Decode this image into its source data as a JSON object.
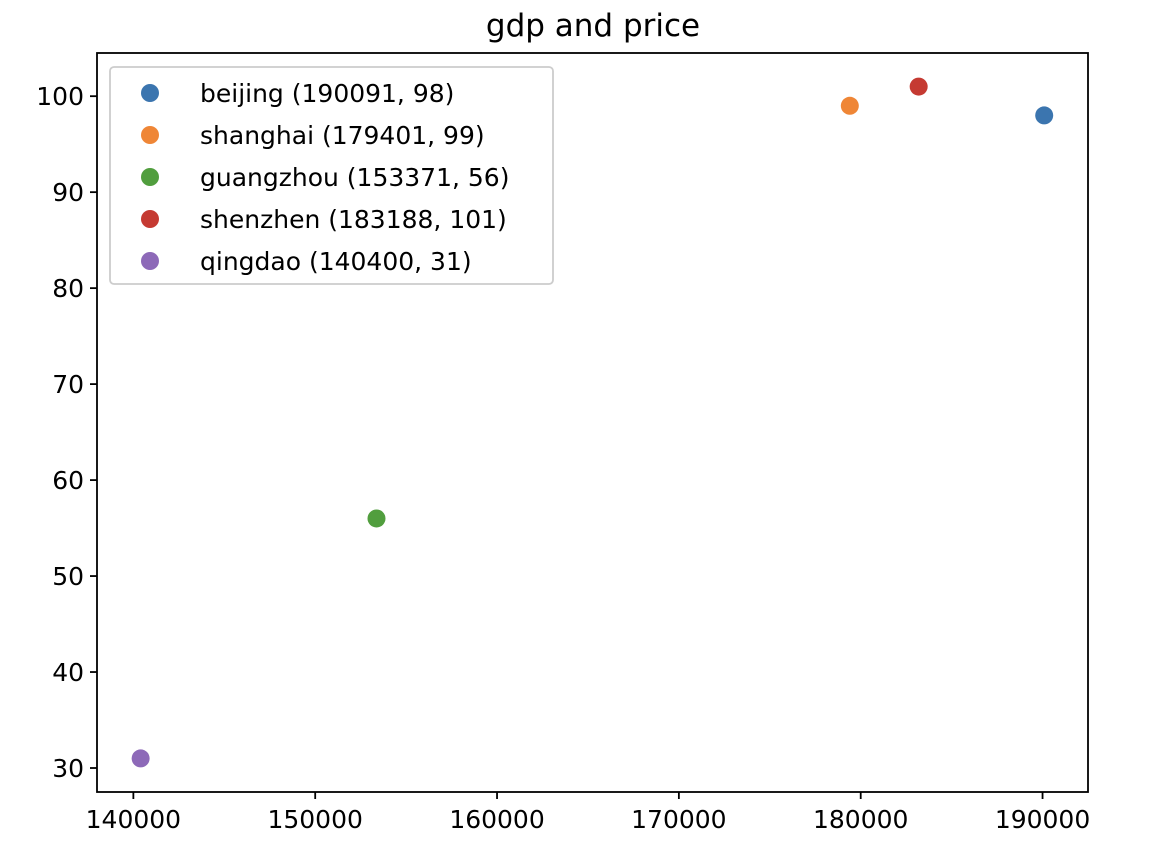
{
  "chart_data": {
    "type": "scatter",
    "title": "gdp and price",
    "xlabel": "",
    "ylabel": "",
    "xlim": [
      138000,
      192500
    ],
    "ylim": [
      27.5,
      104.5
    ],
    "xticks": [
      140000,
      150000,
      160000,
      170000,
      180000,
      190000
    ],
    "yticks": [
      30,
      40,
      50,
      60,
      70,
      80,
      90,
      100
    ],
    "grid": false,
    "legend_position": "top-left",
    "series": [
      {
        "name": "beijing (190091, 98)",
        "color": "#3b75af",
        "points": [
          {
            "x": 190091,
            "y": 98
          }
        ]
      },
      {
        "name": "shanghai (179401, 99)",
        "color": "#ef8636",
        "points": [
          {
            "x": 179401,
            "y": 99
          }
        ]
      },
      {
        "name": "guangzhou (153371, 56)",
        "color": "#519e3e",
        "points": [
          {
            "x": 153371,
            "y": 56
          }
        ]
      },
      {
        "name": "shenzhen (183188, 101)",
        "color": "#c53a32",
        "points": [
          {
            "x": 183188,
            "y": 101
          }
        ]
      },
      {
        "name": "qingdao (140400, 31)",
        "color": "#8d69b8",
        "points": [
          {
            "x": 140400,
            "y": 31
          }
        ]
      }
    ]
  }
}
